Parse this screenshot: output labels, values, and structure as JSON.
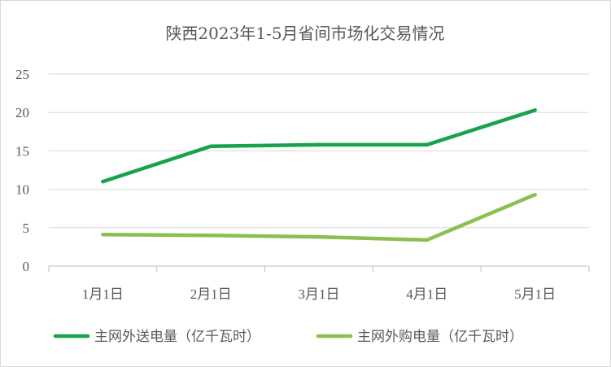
{
  "chart_data": {
    "type": "line",
    "title": "陕西2023年1-5月省间市场化交易情况",
    "categories": [
      "1月1日",
      "2月1日",
      "3月1日",
      "4月1日",
      "5月1日"
    ],
    "yticks": [
      "0",
      "5",
      "10",
      "15",
      "20",
      "25"
    ],
    "ylim": [
      0,
      25
    ],
    "grid": true,
    "legend_position": "bottom",
    "series": [
      {
        "name": "主网外送电量（亿千瓦时）",
        "color": "#16a34a",
        "values": [
          11.0,
          15.6,
          15.8,
          15.8,
          20.3
        ]
      },
      {
        "name": "主网外购电量（亿千瓦时）",
        "color": "#8bbf4f",
        "values": [
          4.1,
          4.0,
          3.8,
          3.4,
          9.3
        ]
      }
    ]
  }
}
